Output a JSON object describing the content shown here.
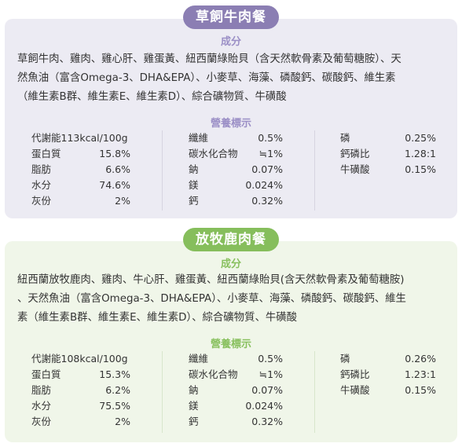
{
  "beef": {
    "title": "草飼牛肉餐",
    "ingredients_heading": "成分",
    "ingredients_lines": [
      "草飼牛肉、雞肉、雞心肝、雞蛋黃、紐西蘭綠貽貝（含天然軟骨素及葡萄糖胺）、天",
      "然魚油（富含Omega-3、DHA&EPA）、小麥草、海藻、磷酸鈣、碳酸鈣、維生素",
      "（維生素B群、維生素E、維生素D）、綜合礦物質、牛磺酸"
    ],
    "nutrition_heading": "營養標示",
    "col1": [
      {
        "k": "代謝能113kcal/100g",
        "v": ""
      },
      {
        "k": "蛋白質",
        "v": "15.8%"
      },
      {
        "k": "脂肪",
        "v": "6.6%"
      },
      {
        "k": "水分",
        "v": "74.6%"
      },
      {
        "k": "灰份",
        "v": "2%"
      }
    ],
    "col2": [
      {
        "k": "纖維",
        "v": "0.5%"
      },
      {
        "k": "碳水化合物",
        "v": "≒1%"
      },
      {
        "k": "鈉",
        "v": "0.07%"
      },
      {
        "k": "鎂",
        "v": "0.024%"
      },
      {
        "k": "鈣",
        "v": "0.32%"
      }
    ],
    "col3": [
      {
        "k": "磷",
        "v": "0.25%"
      },
      {
        "k": "鈣磷比",
        "v": "1.28:1"
      },
      {
        "k": "牛磺酸",
        "v": "0.15%"
      }
    ]
  },
  "deer": {
    "title": "放牧鹿肉餐",
    "ingredients_heading": "成分",
    "ingredients_lines": [
      "紐西蘭放牧鹿肉、雞肉、牛心肝、雞蛋黃、紐西蘭綠貽貝(含天然軟骨素及葡萄糖胺)",
      "、天然魚油（富含Omega-3、DHA&EPA）、小麥草、海藻、磷酸鈣、碳酸鈣、維生",
      "素（維生素B群、維生素E、維生素D）、綜合礦物質、牛磺酸"
    ],
    "nutrition_heading": "營養標示",
    "col1": [
      {
        "k": "代謝能108kcal/100g",
        "v": ""
      },
      {
        "k": "蛋白質",
        "v": "15.3%"
      },
      {
        "k": "脂肪",
        "v": "6.2%"
      },
      {
        "k": "水分",
        "v": "75.5%"
      },
      {
        "k": "灰份",
        "v": "2%"
      }
    ],
    "col2": [
      {
        "k": "纖維",
        "v": "0.5%"
      },
      {
        "k": "碳水化合物",
        "v": "≒1%"
      },
      {
        "k": "鈉",
        "v": "0.07%"
      },
      {
        "k": "鎂",
        "v": "0.024%"
      },
      {
        "k": "鈣",
        "v": "0.32%"
      }
    ],
    "col3": [
      {
        "k": "磷",
        "v": "0.26%"
      },
      {
        "k": "鈣磷比",
        "v": "1.23:1"
      },
      {
        "k": "牛磺酸",
        "v": "0.15%"
      }
    ]
  },
  "colors": {
    "beef_accent": "#8b7eb3",
    "beef_bg": "#ecebf3",
    "deer_accent": "#86be5c",
    "deer_bg": "#f0f6e9"
  }
}
